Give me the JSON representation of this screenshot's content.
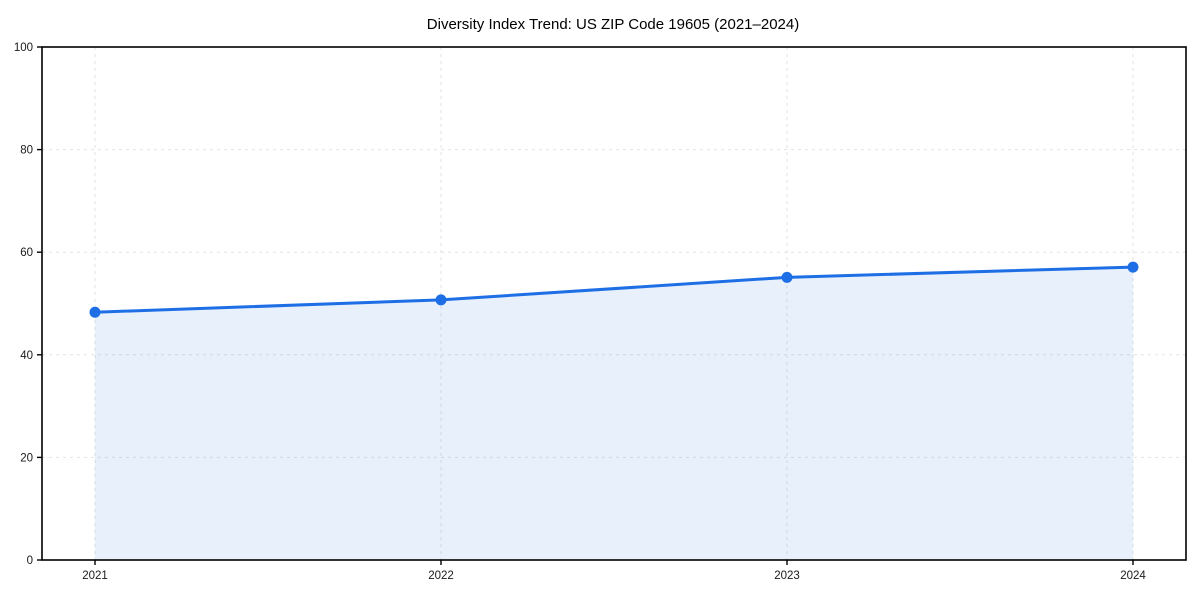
{
  "title": "Diversity Index Trend: US ZIP Code 19605 (2021–2024)",
  "chart_data": {
    "type": "line",
    "title": "Diversity Index Trend: US ZIP Code 19605 (2021–2024)",
    "x": [
      "2021",
      "2022",
      "2023",
      "2024"
    ],
    "series": [
      {
        "name": "Diversity Index",
        "values": [
          48.3,
          50.7,
          55.1,
          57.1
        ]
      }
    ],
    "xlabel": "",
    "ylabel": "",
    "ylim": [
      0,
      100
    ],
    "yticks": [
      0,
      20,
      40,
      60,
      80,
      100
    ],
    "grid": true,
    "grid_style": "dashed",
    "legend": false,
    "area_fill": true,
    "marker": "circle",
    "colors": {
      "line": "#1e6fe5",
      "marker": "#1e6fe5",
      "fill": "rgba(30,111,229,0.10)",
      "grid": "#e2e2e2",
      "spine": "#000000",
      "tick_label": "#1a1a1a",
      "title": "#000000",
      "background": "#ffffff"
    }
  }
}
